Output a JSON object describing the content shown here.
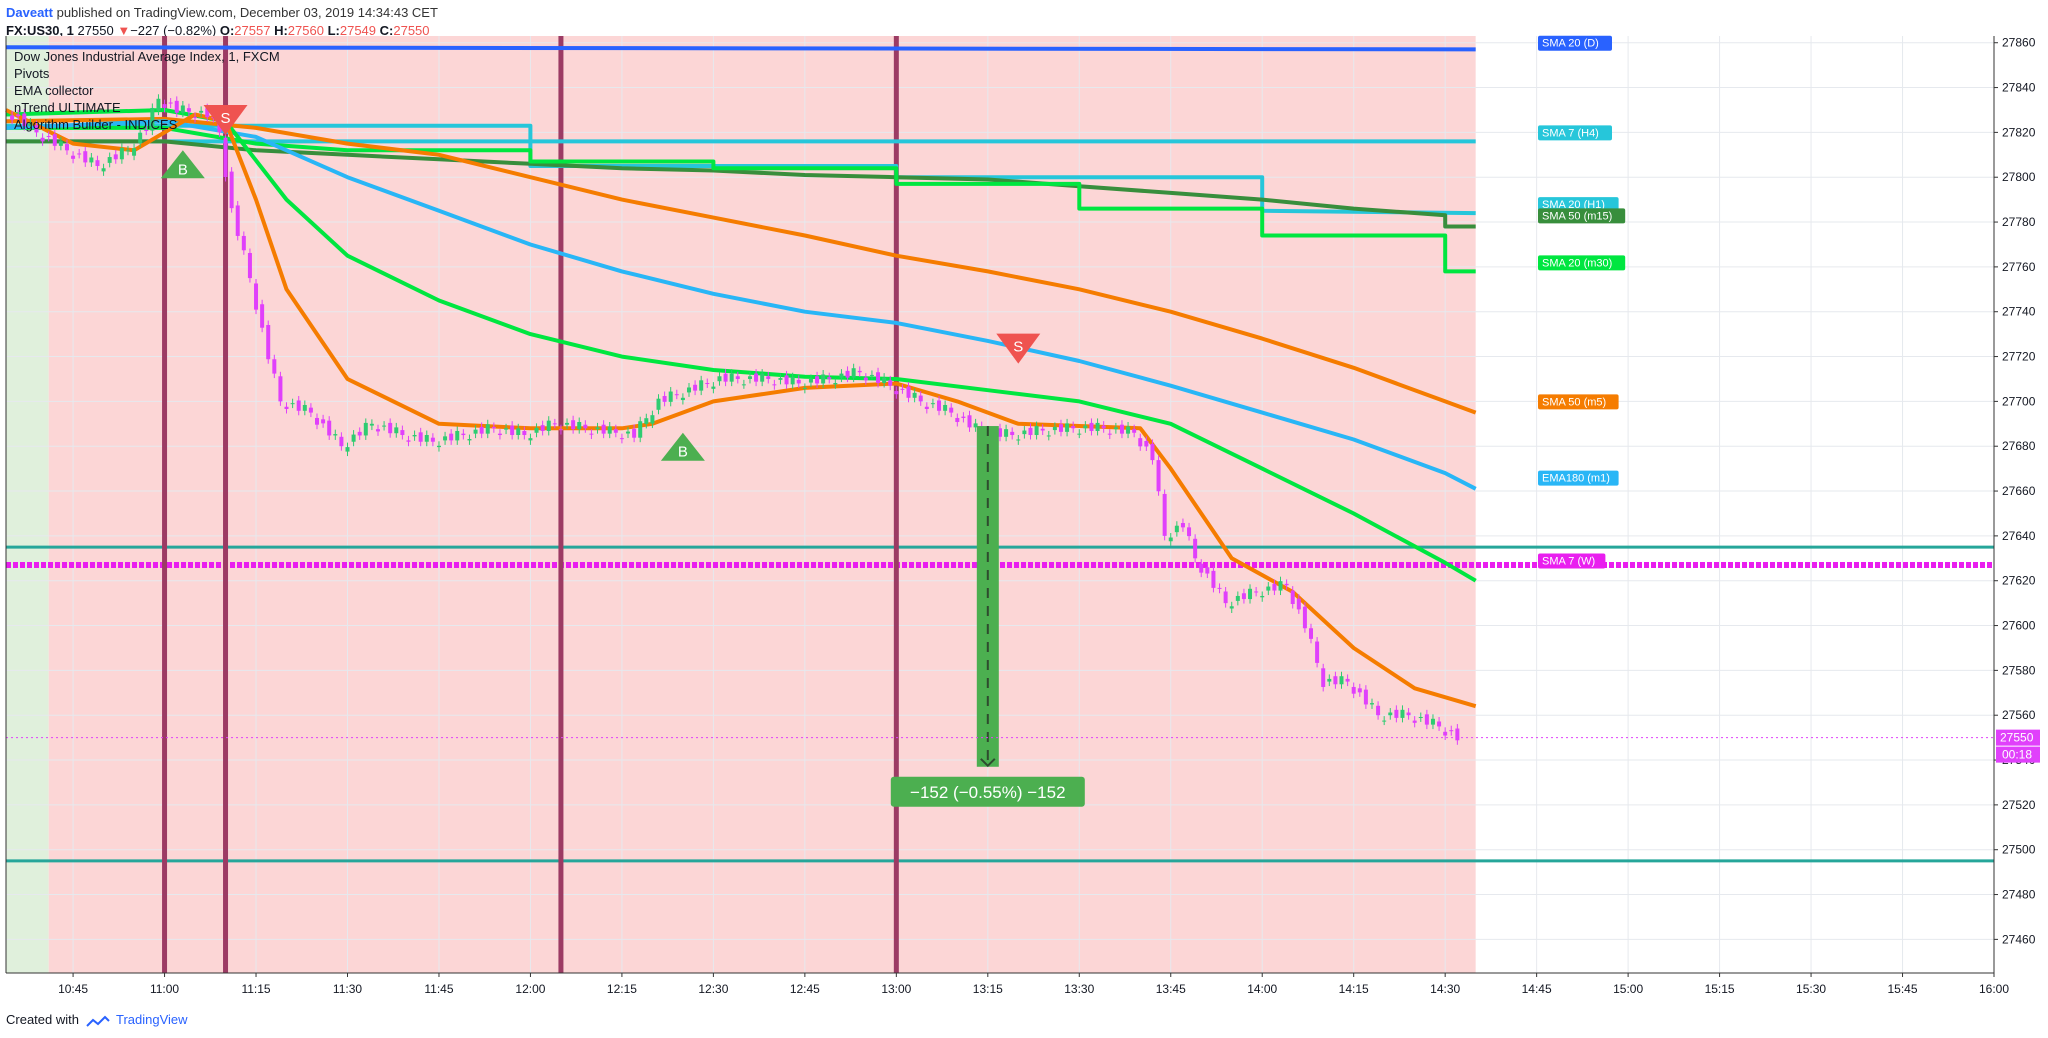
{
  "header": {
    "author": "Daveatt",
    "published": "published on TradingView.com, December 03, 2019 14:34:43 CET",
    "symbol": "FX:US30, 1",
    "price": "27550",
    "change_arrow": "▼",
    "change": "−227 (−0.82%)",
    "o_label": "O:",
    "o": "27557",
    "h_label": "H:",
    "h": "27560",
    "l_label": "L:",
    "l": "27549",
    "c_label": "C:",
    "c": "27550"
  },
  "legend": [
    "Dow Jones Industrial Average Index, 1, FXCM",
    "Pivots",
    "EMA collector",
    "nTrend ULTIMATE",
    "Algorithm Builder - INDICES"
  ],
  "footer": {
    "created_with": "Created with",
    "brand": "TradingView"
  },
  "colors": {
    "bull_candle": "#26a69a",
    "green_candle": "#2ecc71",
    "bear_candle": "#e040fb",
    "sma20_d": "#2962ff",
    "sma7_h4": "#26c6da",
    "sma20_h1": "#26c6da",
    "sma50_m15": "#388e3c",
    "sma20_m30": "#00e640",
    "sma50_m5": "#f57c00",
    "ema180_m1": "#29b6f6",
    "sma7_w": "#e91eef",
    "teal_line": "#26a69a",
    "signal_buy": "#4caf50",
    "signal_sell": "#ef5350",
    "vline": "#9c3b64",
    "red_zone": "#fcd6d6",
    "green_zone": "#e0f0dc"
  },
  "chart_data": {
    "type": "line",
    "x_ticks": [
      "10:45",
      "11:00",
      "11:15",
      "11:30",
      "11:45",
      "12:00",
      "12:15",
      "12:30",
      "12:45",
      "13:00",
      "13:15",
      "13:30",
      "13:45",
      "14:00",
      "14:15",
      "14:30",
      "14:45",
      "15:00",
      "15:15",
      "15:30",
      "15:45",
      "16:00"
    ],
    "y_ticks": [
      27460,
      27480,
      27500,
      27520,
      27540,
      27560,
      27580,
      27600,
      27620,
      27640,
      27660,
      27680,
      27700,
      27720,
      27740,
      27760,
      27780,
      27800,
      27820,
      27840,
      27860
    ],
    "ylim": [
      27445,
      27863
    ],
    "xlim": [
      "10:34",
      "16:00"
    ],
    "price_series": [
      {
        "t": "10:35",
        "v": 27830
      },
      {
        "t": "10:40",
        "v": 27820
      },
      {
        "t": "10:45",
        "v": 27812
      },
      {
        "t": "10:50",
        "v": 27805
      },
      {
        "t": "10:55",
        "v": 27812
      },
      {
        "t": "10:58",
        "v": 27822
      },
      {
        "t": "11:00",
        "v": 27835
      },
      {
        "t": "11:03",
        "v": 27830
      },
      {
        "t": "11:08",
        "v": 27828
      },
      {
        "t": "11:10",
        "v": 27820
      },
      {
        "t": "11:12",
        "v": 27785
      },
      {
        "t": "11:15",
        "v": 27755
      },
      {
        "t": "11:18",
        "v": 27720
      },
      {
        "t": "11:20",
        "v": 27700
      },
      {
        "t": "11:25",
        "v": 27695
      },
      {
        "t": "11:30",
        "v": 27680
      },
      {
        "t": "11:35",
        "v": 27690
      },
      {
        "t": "11:40",
        "v": 27685
      },
      {
        "t": "11:45",
        "v": 27682
      },
      {
        "t": "11:50",
        "v": 27685
      },
      {
        "t": "11:55",
        "v": 27688
      },
      {
        "t": "12:00",
        "v": 27685
      },
      {
        "t": "12:05",
        "v": 27690
      },
      {
        "t": "12:10",
        "v": 27688
      },
      {
        "t": "12:15",
        "v": 27686
      },
      {
        "t": "12:18",
        "v": 27685
      },
      {
        "t": "12:22",
        "v": 27700
      },
      {
        "t": "12:27",
        "v": 27705
      },
      {
        "t": "12:32",
        "v": 27710
      },
      {
        "t": "12:40",
        "v": 27710
      },
      {
        "t": "12:45",
        "v": 27708
      },
      {
        "t": "12:50",
        "v": 27710
      },
      {
        "t": "12:55",
        "v": 27713
      },
      {
        "t": "13:00",
        "v": 27707
      },
      {
        "t": "13:05",
        "v": 27700
      },
      {
        "t": "13:10",
        "v": 27695
      },
      {
        "t": "13:15",
        "v": 27686
      },
      {
        "t": "13:20",
        "v": 27685
      },
      {
        "t": "13:25",
        "v": 27687
      },
      {
        "t": "13:30",
        "v": 27688
      },
      {
        "t": "13:35",
        "v": 27688
      },
      {
        "t": "13:40",
        "v": 27686
      },
      {
        "t": "13:43",
        "v": 27675
      },
      {
        "t": "13:45",
        "v": 27640
      },
      {
        "t": "13:48",
        "v": 27645
      },
      {
        "t": "13:50",
        "v": 27630
      },
      {
        "t": "13:55",
        "v": 27610
      },
      {
        "t": "14:00",
        "v": 27615
      },
      {
        "t": "14:05",
        "v": 27618
      },
      {
        "t": "14:08",
        "v": 27600
      },
      {
        "t": "14:11",
        "v": 27575
      },
      {
        "t": "14:15",
        "v": 27575
      },
      {
        "t": "14:20",
        "v": 27560
      },
      {
        "t": "14:25",
        "v": 27560
      },
      {
        "t": "14:30",
        "v": 27555
      },
      {
        "t": "14:33",
        "v": 27550
      }
    ],
    "series": [
      {
        "name": "SMA 20 (D)",
        "color_key": "sma20_d",
        "points": [
          {
            "t": "10:34",
            "v": 27858
          },
          {
            "t": "14:35",
            "v": 27857
          }
        ]
      },
      {
        "name": "SMA 7 (H4)",
        "color_key": "sma7_h4",
        "points": [
          {
            "t": "10:34",
            "v": 27816
          },
          {
            "t": "14:35",
            "v": 27816
          }
        ]
      },
      {
        "name": "SMA 20 (H1)",
        "color_key": "sma20_h1",
        "points": [
          {
            "t": "10:34",
            "v": 27823
          },
          {
            "t": "12:00",
            "v": 27823
          },
          {
            "t": "12:00",
            "v": 27805
          },
          {
            "t": "13:00",
            "v": 27805
          },
          {
            "t": "13:00",
            "v": 27800
          },
          {
            "t": "14:00",
            "v": 27800
          },
          {
            "t": "14:00",
            "v": 27785
          },
          {
            "t": "14:35",
            "v": 27784
          }
        ]
      },
      {
        "name": "SMA 50 (m15)",
        "color_key": "sma50_m15",
        "points": [
          {
            "t": "10:34",
            "v": 27816
          },
          {
            "t": "11:00",
            "v": 27816
          },
          {
            "t": "11:15",
            "v": 27812
          },
          {
            "t": "11:30",
            "v": 27810
          },
          {
            "t": "11:45",
            "v": 27808
          },
          {
            "t": "12:00",
            "v": 27806
          },
          {
            "t": "12:15",
            "v": 27804
          },
          {
            "t": "12:30",
            "v": 27803
          },
          {
            "t": "12:45",
            "v": 27801
          },
          {
            "t": "13:00",
            "v": 27800
          },
          {
            "t": "13:15",
            "v": 27799
          },
          {
            "t": "13:30",
            "v": 27796
          },
          {
            "t": "13:45",
            "v": 27793
          },
          {
            "t": "14:00",
            "v": 27790
          },
          {
            "t": "14:15",
            "v": 27786
          },
          {
            "t": "14:30",
            "v": 27783
          },
          {
            "t": "14:30",
            "v": 27778
          },
          {
            "t": "14:35",
            "v": 27778
          }
        ]
      },
      {
        "name": "SMA 20 (m30)",
        "color_key": "sma20_m30",
        "points": [
          {
            "t": "10:34",
            "v": 27822
          },
          {
            "t": "11:00",
            "v": 27822
          },
          {
            "t": "11:15",
            "v": 27815
          },
          {
            "t": "11:30",
            "v": 27812
          },
          {
            "t": "12:00",
            "v": 27812
          },
          {
            "t": "12:00",
            "v": 27807
          },
          {
            "t": "12:30",
            "v": 27807
          },
          {
            "t": "12:30",
            "v": 27804
          },
          {
            "t": "13:00",
            "v": 27804
          },
          {
            "t": "13:00",
            "v": 27797
          },
          {
            "t": "13:30",
            "v": 27797
          },
          {
            "t": "13:30",
            "v": 27786
          },
          {
            "t": "14:00",
            "v": 27786
          },
          {
            "t": "14:00",
            "v": 27774
          },
          {
            "t": "14:30",
            "v": 27774
          },
          {
            "t": "14:30",
            "v": 27758
          },
          {
            "t": "14:35",
            "v": 27758
          }
        ]
      },
      {
        "name": "SMA 50 (m5)",
        "color_key": "sma50_m5",
        "points": [
          {
            "t": "10:34",
            "v": 27825
          },
          {
            "t": "11:00",
            "v": 27826
          },
          {
            "t": "11:15",
            "v": 27822
          },
          {
            "t": "11:30",
            "v": 27815
          },
          {
            "t": "11:45",
            "v": 27810
          },
          {
            "t": "12:00",
            "v": 27800
          },
          {
            "t": "12:15",
            "v": 27790
          },
          {
            "t": "12:30",
            "v": 27782
          },
          {
            "t": "12:45",
            "v": 27774
          },
          {
            "t": "13:00",
            "v": 27765
          },
          {
            "t": "13:15",
            "v": 27758
          },
          {
            "t": "13:30",
            "v": 27750
          },
          {
            "t": "13:45",
            "v": 27740
          },
          {
            "t": "14:00",
            "v": 27728
          },
          {
            "t": "14:15",
            "v": 27715
          },
          {
            "t": "14:30",
            "v": 27700
          },
          {
            "t": "14:35",
            "v": 27695
          }
        ]
      },
      {
        "name": "EMA180 (m1)",
        "color_key": "ema180_m1",
        "points": [
          {
            "t": "10:34",
            "v": 27822
          },
          {
            "t": "11:00",
            "v": 27825
          },
          {
            "t": "11:15",
            "v": 27818
          },
          {
            "t": "11:30",
            "v": 27800
          },
          {
            "t": "11:45",
            "v": 27785
          },
          {
            "t": "12:00",
            "v": 27770
          },
          {
            "t": "12:15",
            "v": 27758
          },
          {
            "t": "12:30",
            "v": 27748
          },
          {
            "t": "12:45",
            "v": 27740
          },
          {
            "t": "13:00",
            "v": 27735
          },
          {
            "t": "13:15",
            "v": 27727
          },
          {
            "t": "13:30",
            "v": 27718
          },
          {
            "t": "13:45",
            "v": 27707
          },
          {
            "t": "14:00",
            "v": 27695
          },
          {
            "t": "14:15",
            "v": 27683
          },
          {
            "t": "14:30",
            "v": 27668
          },
          {
            "t": "14:35",
            "v": 27661
          }
        ]
      },
      {
        "name": "EMA collector",
        "color_key": "sma20_m30",
        "points": [
          {
            "t": "10:34",
            "v": 27828
          },
          {
            "t": "11:00",
            "v": 27830
          },
          {
            "t": "11:10",
            "v": 27825
          },
          {
            "t": "11:20",
            "v": 27790
          },
          {
            "t": "11:30",
            "v": 27765
          },
          {
            "t": "11:45",
            "v": 27745
          },
          {
            "t": "12:00",
            "v": 27730
          },
          {
            "t": "12:15",
            "v": 27720
          },
          {
            "t": "12:30",
            "v": 27714
          },
          {
            "t": "12:45",
            "v": 27711
          },
          {
            "t": "13:00",
            "v": 27710
          },
          {
            "t": "13:15",
            "v": 27705
          },
          {
            "t": "13:30",
            "v": 27700
          },
          {
            "t": "13:45",
            "v": 27690
          },
          {
            "t": "14:00",
            "v": 27670
          },
          {
            "t": "14:15",
            "v": 27650
          },
          {
            "t": "14:30",
            "v": 27628
          },
          {
            "t": "14:35",
            "v": 27620
          }
        ]
      },
      {
        "name": "nTrend",
        "color_key": "sma50_m5",
        "points": [
          {
            "t": "10:34",
            "v": 27830
          },
          {
            "t": "10:45",
            "v": 27815
          },
          {
            "t": "10:55",
            "v": 27812
          },
          {
            "t": "11:05",
            "v": 27828
          },
          {
            "t": "11:10",
            "v": 27825
          },
          {
            "t": "11:15",
            "v": 27790
          },
          {
            "t": "11:20",
            "v": 27750
          },
          {
            "t": "11:30",
            "v": 27710
          },
          {
            "t": "11:45",
            "v": 27690
          },
          {
            "t": "12:00",
            "v": 27688
          },
          {
            "t": "12:15",
            "v": 27688
          },
          {
            "t": "12:20",
            "v": 27690
          },
          {
            "t": "12:30",
            "v": 27700
          },
          {
            "t": "12:45",
            "v": 27706
          },
          {
            "t": "13:00",
            "v": 27708
          },
          {
            "t": "13:10",
            "v": 27700
          },
          {
            "t": "13:20",
            "v": 27690
          },
          {
            "t": "13:40",
            "v": 27688
          },
          {
            "t": "13:45",
            "v": 27670
          },
          {
            "t": "13:55",
            "v": 27630
          },
          {
            "t": "14:05",
            "v": 27615
          },
          {
            "t": "14:15",
            "v": 27590
          },
          {
            "t": "14:25",
            "v": 27572
          },
          {
            "t": "14:35",
            "v": 27564
          }
        ]
      }
    ],
    "hlines": [
      {
        "name": "SMA 7 (W)",
        "value": 27627,
        "color_key": "sma7_w"
      },
      {
        "name": "pivot upper",
        "value": 27635,
        "color_key": "teal_line"
      },
      {
        "name": "pivot lower",
        "value": 27495,
        "color_key": "teal_line"
      }
    ],
    "vlines": [
      "11:00",
      "11:10",
      "12:05",
      "13:00"
    ],
    "zones": [
      {
        "from": "10:34",
        "to": "10:41",
        "color_key": "green_zone"
      },
      {
        "from": "10:41",
        "to": "14:35",
        "color_key": "red_zone"
      }
    ],
    "signals": [
      {
        "type": "buy",
        "label": "B",
        "t": "11:03",
        "v": 27804
      },
      {
        "type": "sell",
        "label": "S",
        "t": "11:10",
        "v": 27826
      },
      {
        "type": "buy",
        "label": "B",
        "t": "12:25",
        "v": 27678
      },
      {
        "type": "sell",
        "label": "S",
        "t": "13:20",
        "v": 27724
      }
    ],
    "measure": {
      "from_t": "13:15",
      "from_v": 27689,
      "to_v": 27537,
      "label": "−152 (−0.55%) −152"
    },
    "right_labels": [
      {
        "text": "SMA 20 (D)",
        "v": 27860,
        "color_key": "sma20_d"
      },
      {
        "text": "SMA 7 (H4)",
        "v": 27820,
        "color_key": "sma7_h4"
      },
      {
        "text": "SMA 20 (H1)",
        "v": 27788,
        "color_key": "sma20_h1"
      },
      {
        "text": "SMA 50 (m15)",
        "v": 27783,
        "color_key": "sma50_m15"
      },
      {
        "text": "SMA 20 (m30)",
        "v": 27762,
        "color_key": "sma20_m30"
      },
      {
        "text": "SMA 50 (m5)",
        "v": 27700,
        "color_key": "sma50_m5"
      },
      {
        "text": "EMA180 (m1)",
        "v": 27666,
        "color_key": "ema180_m1"
      },
      {
        "text": "SMA 7 (W)",
        "v": 27629,
        "color_key": "sma7_w"
      }
    ],
    "price_label": {
      "value": "27550",
      "timer": "00:18"
    }
  }
}
